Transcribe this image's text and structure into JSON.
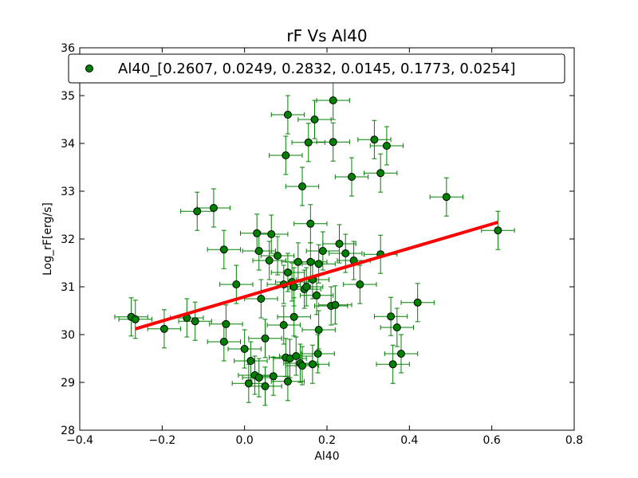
{
  "chart_data": {
    "type": "scatter",
    "title": "rF Vs Al40",
    "xlabel": "Al40",
    "ylabel": "Log_rF[erg/s]",
    "xlim": [
      -0.4,
      0.8
    ],
    "ylim": [
      28,
      36
    ],
    "xticks": [
      "−0.4",
      "−0.2",
      "0.0",
      "0.2",
      "0.4",
      "0.6",
      "0.8"
    ],
    "xtick_values": [
      -0.4,
      -0.2,
      0.0,
      0.2,
      0.4,
      0.6,
      0.8
    ],
    "yticks": [
      "28",
      "29",
      "30",
      "31",
      "32",
      "33",
      "34",
      "35",
      "36"
    ],
    "ytick_values": [
      28,
      29,
      30,
      31,
      32,
      33,
      34,
      35,
      36
    ],
    "grid": false,
    "legend_position": "top",
    "series": [
      {
        "name": "Al40_[0.2607, 0.0249, 0.2832, 0.0145, 0.1773, 0.0254]",
        "color": "#008000",
        "marker": "circle",
        "x_error": 0.04,
        "y_error": 0.4,
        "points": [
          [
            -0.275,
            30.37
          ],
          [
            -0.265,
            30.32
          ],
          [
            -0.195,
            30.12
          ],
          [
            -0.14,
            30.35
          ],
          [
            -0.12,
            30.28
          ],
          [
            -0.115,
            32.58
          ],
          [
            -0.075,
            32.65
          ],
          [
            -0.05,
            31.78
          ],
          [
            -0.05,
            29.85
          ],
          [
            -0.045,
            30.22
          ],
          [
            -0.02,
            31.05
          ],
          [
            0.0,
            29.7
          ],
          [
            0.01,
            28.98
          ],
          [
            0.015,
            29.45
          ],
          [
            0.025,
            29.15
          ],
          [
            0.03,
            32.12
          ],
          [
            0.035,
            29.1
          ],
          [
            0.035,
            31.75
          ],
          [
            0.04,
            30.75
          ],
          [
            0.05,
            29.92
          ],
          [
            0.05,
            28.92
          ],
          [
            0.06,
            31.55
          ],
          [
            0.065,
            32.1
          ],
          [
            0.07,
            29.13
          ],
          [
            0.08,
            31.65
          ],
          [
            0.095,
            30.2
          ],
          [
            0.095,
            31.05
          ],
          [
            0.1,
            33.75
          ],
          [
            0.1,
            29.52
          ],
          [
            0.105,
            31.3
          ],
          [
            0.105,
            29.02
          ],
          [
            0.105,
            34.6
          ],
          [
            0.11,
            29.5
          ],
          [
            0.115,
            31.1
          ],
          [
            0.12,
            30.37
          ],
          [
            0.12,
            31.0
          ],
          [
            0.125,
            29.55
          ],
          [
            0.13,
            31.52
          ],
          [
            0.135,
            29.4
          ],
          [
            0.14,
            33.1
          ],
          [
            0.14,
            29.35
          ],
          [
            0.145,
            30.95
          ],
          [
            0.15,
            31.0
          ],
          [
            0.155,
            34.02
          ],
          [
            0.16,
            31.52
          ],
          [
            0.16,
            32.32
          ],
          [
            0.165,
            29.38
          ],
          [
            0.165,
            31.15
          ],
          [
            0.17,
            34.5
          ],
          [
            0.175,
            30.82
          ],
          [
            0.178,
            29.6
          ],
          [
            0.18,
            31.48
          ],
          [
            0.18,
            30.1
          ],
          [
            0.19,
            31.75
          ],
          [
            0.21,
            30.6
          ],
          [
            0.215,
            34.9
          ],
          [
            0.215,
            34.03
          ],
          [
            0.22,
            30.62
          ],
          [
            0.23,
            31.9
          ],
          [
            0.245,
            31.7
          ],
          [
            0.26,
            33.3
          ],
          [
            0.265,
            31.55
          ],
          [
            0.28,
            31.05
          ],
          [
            0.315,
            34.08
          ],
          [
            0.33,
            31.68
          ],
          [
            0.33,
            33.38
          ],
          [
            0.345,
            33.95
          ],
          [
            0.355,
            30.38
          ],
          [
            0.36,
            29.38
          ],
          [
            0.37,
            30.15
          ],
          [
            0.38,
            29.6
          ],
          [
            0.42,
            30.67
          ],
          [
            0.49,
            32.88
          ],
          [
            0.615,
            32.18
          ]
        ]
      }
    ],
    "fit_line": {
      "color": "#ff0000",
      "x": [
        -0.265,
        0.615
      ],
      "y": [
        30.12,
        32.35
      ]
    }
  }
}
